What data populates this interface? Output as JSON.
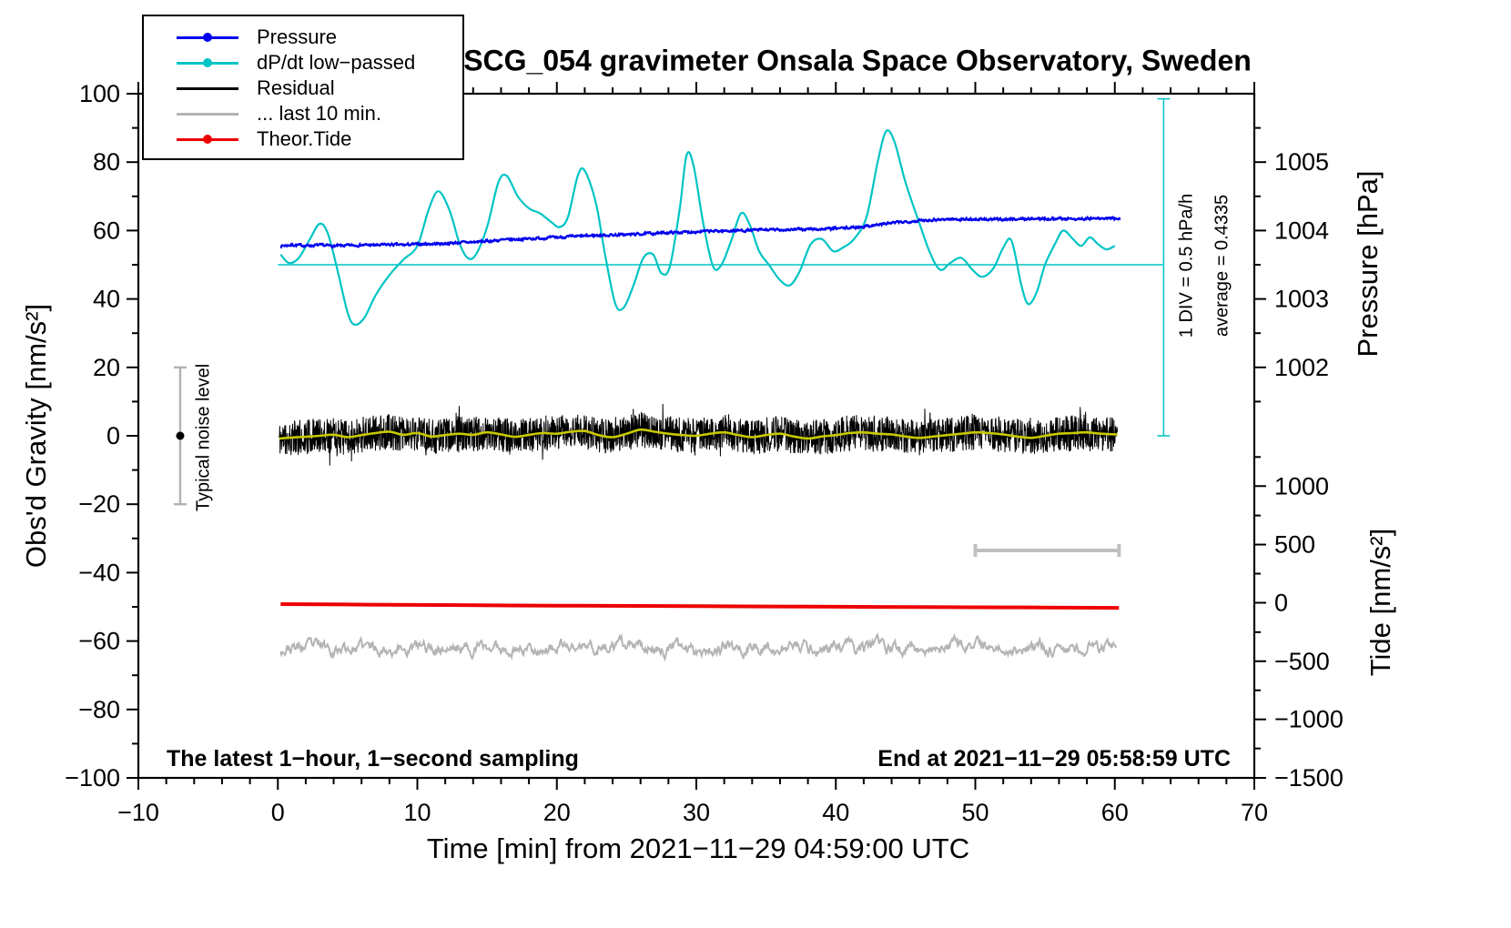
{
  "chart_data": {
    "type": "line",
    "title": "SCG_054 gravimeter Onsala Space Observatory, Sweden",
    "xlabel": "Time [min] from 2021−11−29 04:59:00 UTC",
    "ylabel": "Obs'd Gravity [nm/s²]",
    "y2label_pressure": "Pressure [hPa]",
    "y2label_tide": "Tide [nm/s²]",
    "xlim": [
      -10,
      70
    ],
    "ylim": [
      -100,
      100
    ],
    "x_major": 10,
    "x_minor": 2,
    "y_major": 20,
    "y_minor": 10,
    "pressure_axis": {
      "ticks": [
        {
          "label": "1005",
          "g": 80
        },
        {
          "label": "1004",
          "g": 60
        },
        {
          "label": "1003",
          "g": 40
        },
        {
          "label": "1002",
          "g": 20
        }
      ],
      "minor_g": [
        10,
        30,
        50,
        70,
        90
      ]
    },
    "tide_axis": {
      "ticks": [
        {
          "label": "1000",
          "g": -14.7
        },
        {
          "label": "500",
          "g": -31.8
        },
        {
          "label": "0",
          "g": -48.8
        },
        {
          "label": "−500",
          "g": -65.9
        },
        {
          "label": "−1000",
          "g": -82.9
        },
        {
          "label": "−1500",
          "g": -100
        }
      ],
      "minor_g": [
        -6.2,
        -23.3,
        -40.3,
        -57.4,
        -74.4,
        -91.4
      ]
    },
    "legend": [
      {
        "label": "Pressure",
        "color": "#0000ee",
        "marker": true
      },
      {
        "label": "dP/dt low−passed",
        "color": "#00c4c4",
        "marker": true
      },
      {
        "label": "Residual",
        "color": "#000000",
        "marker": false
      },
      {
        "label": "... last 10 min.",
        "color": "#b4b4b4",
        "marker": false
      },
      {
        "label": "Theor.Tide",
        "color": "#ee0000",
        "marker": true
      }
    ],
    "annotations": {
      "div_note": "1 DIV = 0.5 hPa/h",
      "average_note": "average = 0.4335",
      "noise_note": "Typical noise level",
      "sampling_note": "The latest 1−hour, 1−second sampling",
      "end_note": "End at 2021−11−29 05:58:59 UTC"
    },
    "ref_lines": [
      {
        "orient": "h",
        "y": 50,
        "x1": 0,
        "x2": 63.5,
        "color": "#00c4c4",
        "width": 1.5
      },
      {
        "orient": "v",
        "x": 63.5,
        "y1": 0,
        "y2": 98.5,
        "color": "#00c4c4",
        "width": 1.5,
        "caps": 7
      }
    ],
    "noise_bar": {
      "x": -7,
      "y1": -20,
      "y2": 20,
      "cap": 7,
      "color": "#b4b4b4",
      "dot_y": 0
    },
    "scale_bar": {
      "x1": 50,
      "x2": 60.3,
      "y": -33.5,
      "cap": 7,
      "color": "#c0c0c0",
      "width": 4
    },
    "series": [
      {
        "id": "dpdt",
        "label": "dP/dt low−passed",
        "color": "#00c4c4",
        "width": 2.2,
        "kind": "smooth",
        "points": [
          [
            0.2,
            53
          ],
          [
            0.8,
            50.5
          ],
          [
            1.5,
            52
          ],
          [
            2.3,
            57.5
          ],
          [
            3,
            62
          ],
          [
            3.6,
            59
          ],
          [
            4.3,
            48
          ],
          [
            5,
            36
          ],
          [
            5.5,
            32.5
          ],
          [
            6.2,
            34.5
          ],
          [
            7,
            41
          ],
          [
            8,
            47
          ],
          [
            9,
            51.5
          ],
          [
            10,
            55.5
          ],
          [
            10.8,
            66
          ],
          [
            11.5,
            71.5
          ],
          [
            12.3,
            66
          ],
          [
            13,
            56.5
          ],
          [
            13.6,
            52
          ],
          [
            14.2,
            53
          ],
          [
            15,
            61
          ],
          [
            15.8,
            74
          ],
          [
            16.4,
            76
          ],
          [
            17.2,
            70
          ],
          [
            18,
            66.5
          ],
          [
            18.8,
            65
          ],
          [
            19.6,
            62.5
          ],
          [
            20.2,
            61
          ],
          [
            20.8,
            64
          ],
          [
            21.5,
            76
          ],
          [
            22,
            77.5
          ],
          [
            22.8,
            68
          ],
          [
            23.5,
            52
          ],
          [
            24.2,
            38.5
          ],
          [
            24.8,
            37.5
          ],
          [
            25.5,
            44
          ],
          [
            26.2,
            52
          ],
          [
            26.9,
            53
          ],
          [
            27.5,
            47.5
          ],
          [
            28.1,
            49.5
          ],
          [
            28.8,
            66
          ],
          [
            29.3,
            82
          ],
          [
            29.8,
            79
          ],
          [
            30.5,
            62
          ],
          [
            31.2,
            49.5
          ],
          [
            31.8,
            50
          ],
          [
            32.5,
            57
          ],
          [
            33.2,
            65
          ],
          [
            33.8,
            62
          ],
          [
            34.5,
            54
          ],
          [
            35.2,
            50
          ],
          [
            36,
            45.5
          ],
          [
            36.7,
            44
          ],
          [
            37.4,
            48
          ],
          [
            38.2,
            56
          ],
          [
            39,
            57.5
          ],
          [
            39.8,
            54
          ],
          [
            40.5,
            55
          ],
          [
            41.3,
            57.5
          ],
          [
            42.2,
            64
          ],
          [
            43,
            80
          ],
          [
            43.6,
            89
          ],
          [
            44.2,
            86
          ],
          [
            45,
            74
          ],
          [
            46,
            62
          ],
          [
            46.8,
            53
          ],
          [
            47.5,
            48.5
          ],
          [
            48.2,
            50.5
          ],
          [
            49,
            52
          ],
          [
            49.8,
            48.5
          ],
          [
            50.5,
            46.5
          ],
          [
            51.3,
            49
          ],
          [
            52,
            55
          ],
          [
            52.6,
            57
          ],
          [
            53.3,
            44
          ],
          [
            53.8,
            38.5
          ],
          [
            54.4,
            42
          ],
          [
            55,
            50
          ],
          [
            55.7,
            56
          ],
          [
            56.3,
            60
          ],
          [
            57,
            57.5
          ],
          [
            57.6,
            55.5
          ],
          [
            58.2,
            58
          ],
          [
            58.8,
            56
          ],
          [
            59.4,
            54.5
          ],
          [
            60,
            55.5
          ]
        ]
      },
      {
        "id": "pressure",
        "label": "Pressure",
        "color": "#0000ee",
        "width": 2.4,
        "kind": "noisy",
        "x0": 0.2,
        "x1": 60.4,
        "step": 0.04,
        "noise": 0.34,
        "seed": 7,
        "points": [
          [
            0.2,
            55.5
          ],
          [
            1,
            55.8
          ],
          [
            2,
            55.6
          ],
          [
            3,
            55.7
          ],
          [
            4,
            55.5
          ],
          [
            5,
            55.6
          ],
          [
            6,
            55.8
          ],
          [
            7,
            55.7
          ],
          [
            8,
            55.9
          ],
          [
            9,
            55.8
          ],
          [
            10,
            56.0
          ],
          [
            11,
            56.1
          ],
          [
            12,
            56.2
          ],
          [
            13,
            56.5
          ],
          [
            14,
            56.6
          ],
          [
            15,
            56.9
          ],
          [
            16,
            57.2
          ],
          [
            17,
            57.4
          ],
          [
            18,
            57.6
          ],
          [
            19,
            57.8
          ],
          [
            20,
            58.0
          ],
          [
            21,
            58.2
          ],
          [
            22,
            58.4
          ],
          [
            23,
            58.6
          ],
          [
            24,
            58.7
          ],
          [
            25,
            58.8
          ],
          [
            26,
            59.0
          ],
          [
            27,
            59.2
          ],
          [
            28,
            59.4
          ],
          [
            29,
            59.5
          ],
          [
            30,
            59.7
          ],
          [
            31,
            59.8
          ],
          [
            32,
            59.9
          ],
          [
            33,
            60.0
          ],
          [
            34,
            60.1
          ],
          [
            35,
            60.2
          ],
          [
            36,
            60.2
          ],
          [
            37,
            60.3
          ],
          [
            38,
            60.4
          ],
          [
            39,
            60.4
          ],
          [
            40,
            60.6
          ],
          [
            41,
            60.8
          ],
          [
            42,
            61.2
          ],
          [
            43,
            61.7
          ],
          [
            44,
            62.2
          ],
          [
            45,
            62.6
          ],
          [
            46,
            62.9
          ],
          [
            47,
            63.2
          ],
          [
            48,
            63.3
          ],
          [
            49,
            63.3
          ],
          [
            50,
            63.3
          ],
          [
            51,
            63.2
          ],
          [
            52,
            63.3
          ],
          [
            53,
            63.4
          ],
          [
            54,
            63.4
          ],
          [
            55,
            63.5
          ],
          [
            56,
            63.5
          ],
          [
            57,
            63.4
          ],
          [
            58,
            63.5
          ],
          [
            59,
            63.5
          ],
          [
            60.4,
            63.6
          ]
        ]
      },
      {
        "id": "residual",
        "label": "Residual",
        "color": "#000000",
        "width": 1,
        "kind": "band",
        "x0": 0.1,
        "x1": 60.2,
        "step": 0.02,
        "noise": 5.2,
        "spike_prob": 0.05,
        "spike_amp": 4,
        "seed": 11,
        "mean_color": "#c8c800",
        "mean_width": 2.6,
        "points": [
          [
            0.1,
            -0.8
          ],
          [
            1,
            -0.5
          ],
          [
            2,
            -0.3
          ],
          [
            3,
            0.0
          ],
          [
            4,
            0.3
          ],
          [
            5,
            -0.4
          ],
          [
            6,
            0.2
          ],
          [
            7,
            0.8
          ],
          [
            8,
            1.2
          ],
          [
            9,
            0.3
          ],
          [
            10,
            0.8
          ],
          [
            11,
            -0.2
          ],
          [
            12,
            0.2
          ],
          [
            13,
            0.6
          ],
          [
            14,
            0.3
          ],
          [
            15,
            1.0
          ],
          [
            16,
            0.4
          ],
          [
            17,
            -0.3
          ],
          [
            18,
            0.3
          ],
          [
            19,
            0.8
          ],
          [
            20,
            0.6
          ],
          [
            21,
            1.2
          ],
          [
            22,
            1.4
          ],
          [
            23,
            0.2
          ],
          [
            24,
            -0.4
          ],
          [
            25,
            0.6
          ],
          [
            26,
            1.8
          ],
          [
            27,
            1.2
          ],
          [
            28,
            0.6
          ],
          [
            29,
            0.2
          ],
          [
            30,
            0.0
          ],
          [
            31,
            0.6
          ],
          [
            32,
            1.0
          ],
          [
            33,
            0.2
          ],
          [
            34,
            -0.4
          ],
          [
            35,
            0.2
          ],
          [
            36,
            0.6
          ],
          [
            37,
            -0.2
          ],
          [
            38,
            -0.8
          ],
          [
            39,
            -0.2
          ],
          [
            40,
            0.2
          ],
          [
            41,
            0.8
          ],
          [
            42,
            1.0
          ],
          [
            43,
            0.6
          ],
          [
            44,
            0.4
          ],
          [
            45,
            -0.2
          ],
          [
            46,
            -0.6
          ],
          [
            47,
            -0.2
          ],
          [
            48,
            0.2
          ],
          [
            49,
            0.6
          ],
          [
            50,
            1.0
          ],
          [
            51,
            0.8
          ],
          [
            52,
            0.4
          ],
          [
            53,
            -0.2
          ],
          [
            54,
            -0.6
          ],
          [
            55,
            0.0
          ],
          [
            56,
            0.6
          ],
          [
            57,
            0.8
          ],
          [
            58,
            1.0
          ],
          [
            59,
            0.6
          ],
          [
            60.2,
            0.4
          ]
        ]
      },
      {
        "id": "tide",
        "label": "Theor.Tide",
        "color": "#ee0000",
        "width": 4,
        "kind": "smooth",
        "points": [
          [
            0.2,
            -49.2
          ],
          [
            10,
            -49.45
          ],
          [
            20,
            -49.65
          ],
          [
            30,
            -49.82
          ],
          [
            40,
            -49.98
          ],
          [
            50,
            -50.12
          ],
          [
            60.3,
            -50.28
          ]
        ]
      },
      {
        "id": "last10",
        "label": "... last 10 min.",
        "color": "#b4b4b4",
        "width": 2,
        "kind": "ar1",
        "x0": 0.2,
        "x1": 60.2,
        "step": 0.06,
        "base": -62,
        "amp": 2.6,
        "smooth": 0.8,
        "seed": 23
      }
    ]
  }
}
